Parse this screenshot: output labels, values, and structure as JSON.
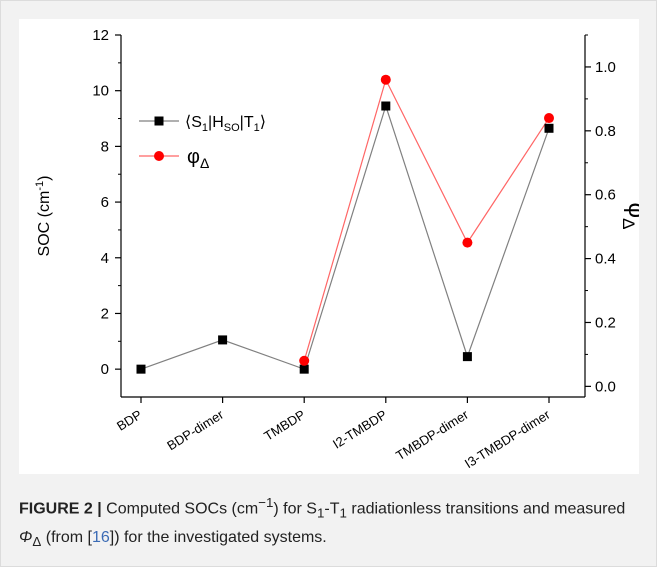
{
  "chart_data": {
    "type": "line",
    "categories": [
      "BDP",
      "BDP-dimer",
      "TMBDP",
      "I2-TMBDP",
      "TMBDP-dimer",
      "I3-TMBDP-dimer"
    ],
    "series": [
      {
        "name": "(S1|HSO|T1)",
        "name_parts": {
          "open": "⟨S",
          "s1_sub": "1",
          "bar1": "|H",
          "hso_sub": "SO",
          "bar2": "|T",
          "t1_sub": "1",
          "close": "⟩"
        },
        "axis": "left",
        "marker": "square",
        "color": "#000000",
        "line_color": "#808080",
        "values": [
          0.0,
          1.05,
          0.0,
          9.45,
          0.45,
          8.65
        ]
      },
      {
        "name": "φΔ",
        "name_parts": {
          "base": "φ",
          "sub": "Δ"
        },
        "axis": "right",
        "marker": "circle",
        "color": "#ff0000",
        "line_color": "#ff6666",
        "values": [
          null,
          null,
          0.08,
          0.96,
          0.45,
          0.84
        ]
      }
    ],
    "y_left": {
      "label": "SOC",
      "unit": "-1",
      "label_parts": {
        "main": "SOC (cm",
        "sup": "-1",
        "close": ")"
      },
      "range": [
        -1,
        12
      ],
      "ticks": [
        0,
        2,
        4,
        6,
        8,
        10,
        12
      ]
    },
    "y_right": {
      "label": "φΔ",
      "label_parts": {
        "base": "φ",
        "sub": "Δ"
      },
      "range": [
        -0.0333,
        1.1
      ],
      "ticks": [
        "0.0",
        "0.2",
        "0.4",
        "0.6",
        "0.8",
        "1.0"
      ]
    },
    "legend": "top-left",
    "grid": false
  },
  "caption": {
    "label": "FIGURE 2 |",
    "t1": " Computed SOCs (cm",
    "t1_sup": "−1",
    "t2": ") for S",
    "t2_sub": "1",
    "t3": "-T",
    "t3_sub": "1",
    "t4": " radiationless transitions and measured ",
    "t5": "Φ",
    "t5_sub": "Δ",
    "t6": " (from [",
    "ref": "16",
    "t7": "]) for the investigated systems."
  }
}
